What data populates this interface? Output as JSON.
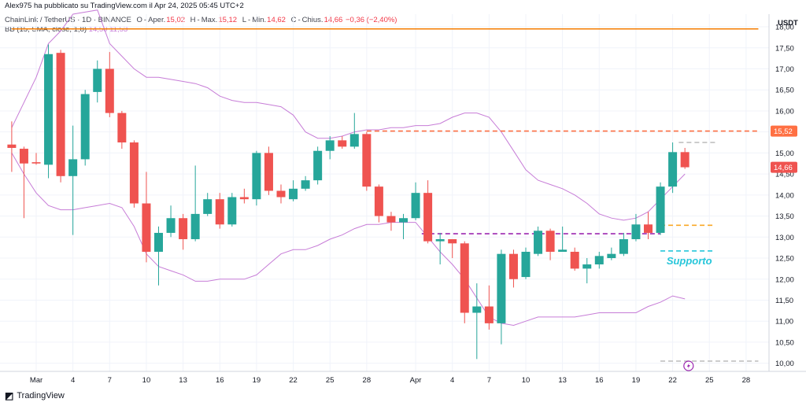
{
  "header": {
    "publisher": "Alex975 ha pubblicato su TradingView.com il Apr 24, 2025 05:45 UTC+2",
    "symbol": "ChainLink / TetherUS · 1D · BINANCE",
    "ohlc": {
      "open_label": "O",
      "open_text": "Aper.",
      "open": "15,02",
      "high_label": "H",
      "high_text": "Max.",
      "high": "15,12",
      "low_label": "L",
      "low_text": "Min.",
      "low": "14,62",
      "close_label": "C",
      "close_text": "Chius.",
      "close": "14,66",
      "change": "−0,36 (−2,40%)"
    },
    "indicator": {
      "label": "BB (15, SMA, close, 1,8)",
      "v1": "14,50",
      "v2": "11,53"
    }
  },
  "footer": {
    "brand": "TradingView"
  },
  "colors": {
    "up": "#26a69a",
    "down": "#ef5350",
    "bb": "#c77dd7",
    "resistance": "#f57c00",
    "orange_dash": "#ff7043",
    "yellow_dash": "#f9a825",
    "cyan_dash": "#26c6da",
    "purple_dash": "#9c27b0",
    "gray_dash": "#c0c0c0"
  },
  "chart_data": {
    "type": "candlestick",
    "currency": "USDT",
    "ylim": [
      9.9,
      18.3
    ],
    "y_ticks": [
      "18,00",
      "17,50",
      "17,00",
      "16,50",
      "16,00",
      "15,50",
      "15,00",
      "14,50",
      "14,00",
      "13,50",
      "13,00",
      "12,50",
      "12,00",
      "11,50",
      "11,00",
      "10,50",
      "10,00"
    ],
    "x_ticks": [
      {
        "label": "Mar",
        "day": 0
      },
      {
        "label": "4",
        "day": 3
      },
      {
        "label": "7",
        "day": 6
      },
      {
        "label": "10",
        "day": 9
      },
      {
        "label": "13",
        "day": 12
      },
      {
        "label": "16",
        "day": 15
      },
      {
        "label": "19",
        "day": 18
      },
      {
        "label": "22",
        "day": 21
      },
      {
        "label": "25",
        "day": 24
      },
      {
        "label": "28",
        "day": 27
      },
      {
        "label": "Apr",
        "day": 31
      },
      {
        "label": "4",
        "day": 34
      },
      {
        "label": "7",
        "day": 37
      },
      {
        "label": "10",
        "day": 40
      },
      {
        "label": "13",
        "day": 43
      },
      {
        "label": "16",
        "day": 46
      },
      {
        "label": "19",
        "day": 49
      },
      {
        "label": "22",
        "day": 52
      },
      {
        "label": "25",
        "day": 55
      },
      {
        "label": "28",
        "day": 58
      }
    ],
    "candles": [
      {
        "day": -2,
        "o": 15.2,
        "h": 15.75,
        "l": 14.55,
        "c": 15.12
      },
      {
        "day": -1,
        "o": 15.1,
        "h": 15.15,
        "l": 13.45,
        "c": 14.75
      },
      {
        "day": 0,
        "o": 14.78,
        "h": 15.0,
        "l": 14.72,
        "c": 14.75
      },
      {
        "day": 1,
        "o": 14.72,
        "h": 17.58,
        "l": 14.4,
        "c": 17.35
      },
      {
        "day": 2,
        "o": 17.38,
        "h": 17.45,
        "l": 14.3,
        "c": 14.45
      },
      {
        "day": 3,
        "o": 14.45,
        "h": 15.65,
        "l": 13.05,
        "c": 14.85
      },
      {
        "day": 4,
        "o": 14.85,
        "h": 16.5,
        "l": 14.7,
        "c": 16.4
      },
      {
        "day": 5,
        "o": 16.45,
        "h": 17.2,
        "l": 16.2,
        "c": 17.0
      },
      {
        "day": 6,
        "o": 17.0,
        "h": 17.4,
        "l": 15.85,
        "c": 15.95
      },
      {
        "day": 7,
        "o": 15.95,
        "h": 16.0,
        "l": 15.1,
        "c": 15.25
      },
      {
        "day": 8,
        "o": 15.25,
        "h": 15.3,
        "l": 13.7,
        "c": 13.8
      },
      {
        "day": 9,
        "o": 13.8,
        "h": 14.55,
        "l": 12.4,
        "c": 12.65
      },
      {
        "day": 10,
        "o": 12.65,
        "h": 13.25,
        "l": 11.85,
        "c": 13.1
      },
      {
        "day": 11,
        "o": 13.1,
        "h": 13.75,
        "l": 13.0,
        "c": 13.45
      },
      {
        "day": 12,
        "o": 13.45,
        "h": 13.55,
        "l": 12.7,
        "c": 12.95
      },
      {
        "day": 13,
        "o": 12.95,
        "h": 14.7,
        "l": 12.9,
        "c": 13.55
      },
      {
        "day": 14,
        "o": 13.55,
        "h": 14.05,
        "l": 13.5,
        "c": 13.9
      },
      {
        "day": 15,
        "o": 13.9,
        "h": 14.05,
        "l": 13.2,
        "c": 13.3
      },
      {
        "day": 16,
        "o": 13.3,
        "h": 14.05,
        "l": 13.25,
        "c": 13.95
      },
      {
        "day": 17,
        "o": 13.95,
        "h": 14.15,
        "l": 13.8,
        "c": 13.9
      },
      {
        "day": 18,
        "o": 13.9,
        "h": 15.05,
        "l": 13.75,
        "c": 15.0
      },
      {
        "day": 19,
        "o": 15.0,
        "h": 15.15,
        "l": 14.0,
        "c": 14.1
      },
      {
        "day": 20,
        "o": 14.1,
        "h": 14.25,
        "l": 13.8,
        "c": 13.95
      },
      {
        "day": 21,
        "o": 13.9,
        "h": 14.35,
        "l": 13.85,
        "c": 14.15
      },
      {
        "day": 22,
        "o": 14.15,
        "h": 14.45,
        "l": 14.1,
        "c": 14.35
      },
      {
        "day": 23,
        "o": 14.35,
        "h": 15.15,
        "l": 14.25,
        "c": 15.05
      },
      {
        "day": 24,
        "o": 15.05,
        "h": 15.4,
        "l": 14.85,
        "c": 15.3
      },
      {
        "day": 25,
        "o": 15.3,
        "h": 15.4,
        "l": 15.1,
        "c": 15.15
      },
      {
        "day": 26,
        "o": 15.15,
        "h": 15.95,
        "l": 15.1,
        "c": 15.45
      },
      {
        "day": 27,
        "o": 15.45,
        "h": 15.5,
        "l": 14.1,
        "c": 14.2
      },
      {
        "day": 28,
        "o": 14.2,
        "h": 14.25,
        "l": 13.35,
        "c": 13.5
      },
      {
        "day": 29,
        "o": 13.5,
        "h": 13.6,
        "l": 13.15,
        "c": 13.35
      },
      {
        "day": 30,
        "o": 13.35,
        "h": 13.55,
        "l": 12.95,
        "c": 13.45
      },
      {
        "day": 31,
        "o": 13.45,
        "h": 14.3,
        "l": 13.4,
        "c": 14.05
      },
      {
        "day": 32,
        "o": 14.05,
        "h": 14.35,
        "l": 12.85,
        "c": 12.9
      },
      {
        "day": 33,
        "o": 12.9,
        "h": 13.1,
        "l": 12.35,
        "c": 12.95
      },
      {
        "day": 34,
        "o": 12.95,
        "h": 12.95,
        "l": 12.5,
        "c": 12.85
      },
      {
        "day": 35,
        "o": 12.85,
        "h": 12.9,
        "l": 10.95,
        "c": 11.2
      },
      {
        "day": 36,
        "o": 11.2,
        "h": 11.9,
        "l": 10.1,
        "c": 11.35
      },
      {
        "day": 37,
        "o": 11.35,
        "h": 11.85,
        "l": 10.8,
        "c": 10.95
      },
      {
        "day": 38,
        "o": 10.95,
        "h": 12.7,
        "l": 10.45,
        "c": 12.6
      },
      {
        "day": 39,
        "o": 12.6,
        "h": 12.7,
        "l": 11.8,
        "c": 12.0
      },
      {
        "day": 40,
        "o": 12.05,
        "h": 12.75,
        "l": 12.0,
        "c": 12.65
      },
      {
        "day": 41,
        "o": 12.6,
        "h": 13.25,
        "l": 12.55,
        "c": 13.15
      },
      {
        "day": 42,
        "o": 13.15,
        "h": 13.2,
        "l": 12.45,
        "c": 12.65
      },
      {
        "day": 43,
        "o": 12.65,
        "h": 13.25,
        "l": 12.65,
        "c": 12.7
      },
      {
        "day": 44,
        "o": 12.65,
        "h": 12.75,
        "l": 12.2,
        "c": 12.25
      },
      {
        "day": 45,
        "o": 12.25,
        "h": 12.5,
        "l": 11.9,
        "c": 12.35
      },
      {
        "day": 46,
        "o": 12.35,
        "h": 12.65,
        "l": 12.25,
        "c": 12.55
      },
      {
        "day": 47,
        "o": 12.5,
        "h": 12.75,
        "l": 12.45,
        "c": 12.6
      },
      {
        "day": 48,
        "o": 12.6,
        "h": 13.1,
        "l": 12.55,
        "c": 12.95
      },
      {
        "day": 49,
        "o": 12.95,
        "h": 13.55,
        "l": 12.9,
        "c": 13.3
      },
      {
        "day": 50,
        "o": 13.3,
        "h": 13.6,
        "l": 12.95,
        "c": 13.1
      },
      {
        "day": 51,
        "o": 13.1,
        "h": 14.3,
        "l": 13.05,
        "c": 14.2
      },
      {
        "day": 52,
        "o": 14.2,
        "h": 15.25,
        "l": 14.05,
        "c": 15.02
      },
      {
        "day": 53,
        "o": 15.02,
        "h": 15.12,
        "l": 14.62,
        "c": 14.66
      }
    ],
    "bb_upper": [
      [
        -2,
        15.6
      ],
      [
        0,
        16.8
      ],
      [
        1,
        17.6
      ],
      [
        2,
        17.9
      ],
      [
        3,
        18.3
      ],
      [
        5,
        18.4
      ],
      [
        6,
        17.6
      ],
      [
        7,
        17.3
      ],
      [
        8,
        17.0
      ],
      [
        9,
        16.8
      ],
      [
        10,
        16.8
      ],
      [
        11,
        16.75
      ],
      [
        12,
        16.7
      ],
      [
        13,
        16.65
      ],
      [
        14,
        16.55
      ],
      [
        15,
        16.35
      ],
      [
        16,
        16.25
      ],
      [
        17,
        16.2
      ],
      [
        18,
        16.2
      ],
      [
        19,
        16.15
      ],
      [
        20,
        16.1
      ],
      [
        21,
        15.9
      ],
      [
        22,
        15.5
      ],
      [
        23,
        15.35
      ],
      [
        24,
        15.35
      ],
      [
        25,
        15.4
      ],
      [
        26,
        15.5
      ],
      [
        27,
        15.55
      ],
      [
        28,
        15.55
      ],
      [
        29,
        15.6
      ],
      [
        30,
        15.6
      ],
      [
        31,
        15.65
      ],
      [
        32,
        15.65
      ],
      [
        33,
        15.7
      ],
      [
        34,
        15.85
      ],
      [
        35,
        15.95
      ],
      [
        36,
        15.95
      ],
      [
        37,
        15.85
      ],
      [
        38,
        15.5
      ],
      [
        39,
        15.05
      ],
      [
        40,
        14.6
      ],
      [
        41,
        14.35
      ],
      [
        42,
        14.25
      ],
      [
        43,
        14.15
      ],
      [
        44,
        14.0
      ],
      [
        45,
        13.8
      ],
      [
        46,
        13.55
      ],
      [
        47,
        13.45
      ],
      [
        48,
        13.4
      ],
      [
        49,
        13.45
      ],
      [
        50,
        13.6
      ],
      [
        51,
        13.9
      ],
      [
        52,
        14.2
      ],
      [
        53,
        14.5
      ]
    ],
    "bb_lower": [
      [
        -2,
        15.0
      ],
      [
        -1,
        14.5
      ],
      [
        0,
        14.05
      ],
      [
        1,
        13.75
      ],
      [
        2,
        13.65
      ],
      [
        3,
        13.65
      ],
      [
        4,
        13.7
      ],
      [
        5,
        13.75
      ],
      [
        6,
        13.8
      ],
      [
        7,
        13.7
      ],
      [
        8,
        13.25
      ],
      [
        9,
        12.6
      ],
      [
        10,
        12.3
      ],
      [
        11,
        12.2
      ],
      [
        12,
        12.1
      ],
      [
        13,
        11.95
      ],
      [
        14,
        11.95
      ],
      [
        15,
        12.0
      ],
      [
        16,
        12.0
      ],
      [
        17,
        12.0
      ],
      [
        18,
        12.1
      ],
      [
        19,
        12.35
      ],
      [
        20,
        12.6
      ],
      [
        21,
        12.7
      ],
      [
        22,
        12.7
      ],
      [
        23,
        12.8
      ],
      [
        24,
        12.95
      ],
      [
        25,
        13.05
      ],
      [
        26,
        13.2
      ],
      [
        27,
        13.3
      ],
      [
        28,
        13.3
      ],
      [
        29,
        13.35
      ],
      [
        30,
        13.35
      ],
      [
        31,
        13.35
      ],
      [
        32,
        13.0
      ],
      [
        33,
        12.65
      ],
      [
        34,
        12.35
      ],
      [
        35,
        12.0
      ],
      [
        36,
        11.55
      ],
      [
        37,
        11.1
      ],
      [
        38,
        10.95
      ],
      [
        39,
        10.9
      ],
      [
        40,
        11.0
      ],
      [
        41,
        11.1
      ],
      [
        42,
        11.1
      ],
      [
        43,
        11.1
      ],
      [
        44,
        11.1
      ],
      [
        45,
        11.15
      ],
      [
        46,
        11.2
      ],
      [
        47,
        11.2
      ],
      [
        48,
        11.2
      ],
      [
        49,
        11.2
      ],
      [
        50,
        11.35
      ],
      [
        51,
        11.45
      ],
      [
        52,
        11.6
      ],
      [
        53,
        11.53
      ]
    ],
    "levels": [
      {
        "name": "resistance-line",
        "value": 17.95,
        "style": "solid",
        "color": "#f57c00",
        "from_day": -2,
        "to_day": 59
      },
      {
        "name": "orange-dashed-level",
        "value": 15.52,
        "style": "dashed",
        "color": "#ff7043",
        "from_day": 27,
        "to_day": 59
      },
      {
        "name": "gray-dashed-level",
        "value": 15.25,
        "style": "dashed",
        "color": "#c0c0c0",
        "from_day": 52.5,
        "to_day": 55.5
      },
      {
        "name": "yellow-dashed-level",
        "value": 13.28,
        "style": "dashed",
        "color": "#f9a825",
        "from_day": 51,
        "to_day": 55.5
      },
      {
        "name": "purple-dashed-level",
        "value": 13.08,
        "style": "dashed",
        "color": "#9c27b0",
        "from_day": 31.5,
        "to_day": 51
      },
      {
        "name": "cyan-support-level",
        "value": 12.67,
        "style": "dashed",
        "color": "#26c6da",
        "from_day": 51,
        "to_day": 55.5
      },
      {
        "name": "gray-bottom-level",
        "value": 10.05,
        "style": "dashed",
        "color": "#c0c0c0",
        "from_day": 51,
        "to_day": 59
      }
    ],
    "price_labels": [
      {
        "value": 15.52,
        "text": "15,52",
        "color": "#ff7043"
      },
      {
        "value": 14.66,
        "text": "14,66",
        "color": "#ef5350"
      }
    ],
    "annotations": [
      {
        "text": "Supporto",
        "day": 51.5,
        "value": 12.35
      }
    ]
  }
}
